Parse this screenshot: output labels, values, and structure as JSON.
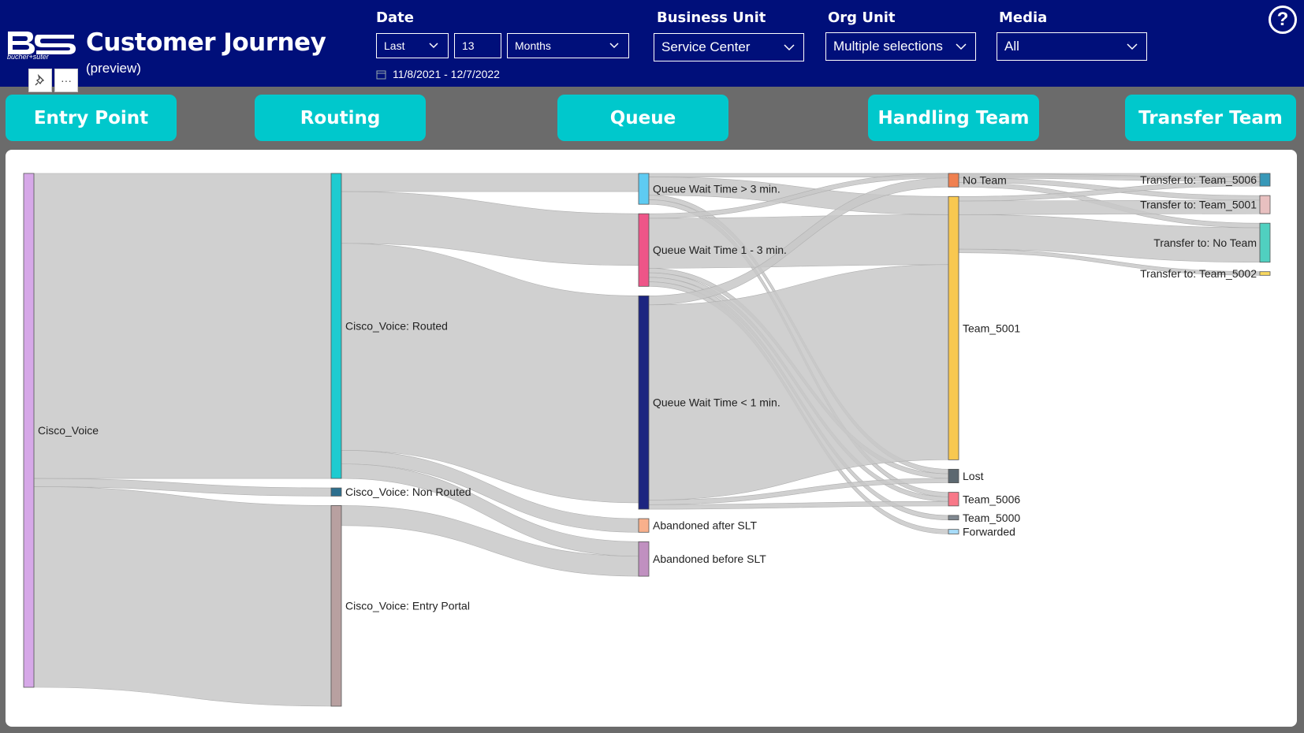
{
  "app": {
    "title": "Customer Journey",
    "subtitle": "(preview)",
    "logo_text": "bucher+suter",
    "pin_icon": "pin-icon",
    "more_label": "···",
    "help_label": "?"
  },
  "filters": {
    "date": {
      "label": "Date",
      "mode": "Last",
      "count": "13",
      "unit": "Months",
      "range": "11/8/2021 - 12/7/2022"
    },
    "business_unit": {
      "label": "Business Unit",
      "value": "Service Center"
    },
    "org_unit": {
      "label": "Org Unit",
      "value": "Multiple selections"
    },
    "media": {
      "label": "Media",
      "value": "All"
    }
  },
  "stages": [
    "Entry Point",
    "Routing",
    "Queue",
    "Handling Team",
    "Transfer Team"
  ],
  "colors": {
    "header": "#000f7a",
    "stage": "#00c8cc",
    "link": "#c8c8c8"
  },
  "chart_data": {
    "type": "sankey",
    "title": "Customer Journey",
    "columns": [
      "Entry Point",
      "Routing",
      "Queue",
      "Handling Team",
      "Transfer Team"
    ],
    "nodes": [
      {
        "id": "cv",
        "label": "Cisco_Voice",
        "column": 0,
        "color": "#d6a8e8"
      },
      {
        "id": "routed",
        "label": "Cisco_Voice: Routed",
        "column": 1,
        "color": "#1ecbd0"
      },
      {
        "id": "nonrouted",
        "label": "Cisco_Voice: Non Routed",
        "column": 1,
        "color": "#2d6f8e"
      },
      {
        "id": "portal",
        "label": "Cisco_Voice: Entry Portal",
        "column": 1,
        "color": "#b8a0a0"
      },
      {
        "id": "q3",
        "label": "Queue Wait Time > 3 min.",
        "column": 2,
        "color": "#5ecbf2"
      },
      {
        "id": "q13",
        "label": "Queue Wait Time 1 - 3 min.",
        "column": 2,
        "color": "#ee5588"
      },
      {
        "id": "q1",
        "label": "Queue Wait Time < 1 min.",
        "column": 2,
        "color": "#1c2580"
      },
      {
        "id": "abA",
        "label": "Abandoned after SLT",
        "column": 2,
        "color": "#f8b08c"
      },
      {
        "id": "abB",
        "label": "Abandoned before SLT",
        "column": 2,
        "color": "#c090c0"
      },
      {
        "id": "noteam",
        "label": "No Team",
        "column": 3,
        "color": "#f08050"
      },
      {
        "id": "t5001",
        "label": "Team_5001",
        "column": 3,
        "color": "#f8c850"
      },
      {
        "id": "lost",
        "label": "Lost",
        "column": 3,
        "color": "#5c6870"
      },
      {
        "id": "t5006",
        "label": "Team_5006",
        "column": 3,
        "color": "#f87888"
      },
      {
        "id": "t5000",
        "label": "Team_5000",
        "column": 3,
        "color": "#808890"
      },
      {
        "id": "fwd",
        "label": "Forwarded",
        "column": 3,
        "color": "#a8dcf8"
      },
      {
        "id": "tr5006",
        "label": "Transfer to: Team_5006",
        "column": 4,
        "color": "#3898b8"
      },
      {
        "id": "tr5001",
        "label": "Transfer to: Team_5001",
        "column": 4,
        "color": "#e8c0c0"
      },
      {
        "id": "trno",
        "label": "Transfer to: No Team",
        "column": 4,
        "color": "#50d0c0"
      },
      {
        "id": "tr5002",
        "label": "Transfer to: Team_5002",
        "column": 4,
        "color": "#f8d860"
      }
    ],
    "links": [
      {
        "source": "cv",
        "target": "routed",
        "value": 336
      },
      {
        "source": "cv",
        "target": "nonrouted",
        "value": 9
      },
      {
        "source": "cv",
        "target": "portal",
        "value": 221
      },
      {
        "source": "routed",
        "target": "q3",
        "value": 20
      },
      {
        "source": "routed",
        "target": "q13",
        "value": 57
      },
      {
        "source": "routed",
        "target": "q1",
        "value": 228
      },
      {
        "source": "routed",
        "target": "abA",
        "value": 15
      },
      {
        "source": "routed",
        "target": "abB",
        "value": 16
      },
      {
        "source": "portal",
        "target": "abB",
        "value": 22
      },
      {
        "source": "q3",
        "target": "tr5006",
        "value": 4
      },
      {
        "source": "q3",
        "target": "t5001",
        "value": 20
      },
      {
        "source": "q3",
        "target": "lost",
        "value": 5
      },
      {
        "source": "q3",
        "target": "t5006",
        "value": 5
      },
      {
        "source": "q13",
        "target": "noteam",
        "value": 5
      },
      {
        "source": "q13",
        "target": "t5001",
        "value": 55
      },
      {
        "source": "q13",
        "target": "lost",
        "value": 5
      },
      {
        "source": "q13",
        "target": "t5006",
        "value": 5
      },
      {
        "source": "q13",
        "target": "t5000",
        "value": 5
      },
      {
        "source": "q13",
        "target": "fwd",
        "value": 5
      },
      {
        "source": "q1",
        "target": "noteam",
        "value": 10
      },
      {
        "source": "q1",
        "target": "t5001",
        "value": 215
      },
      {
        "source": "q1",
        "target": "lost",
        "value": 5
      },
      {
        "source": "q1",
        "target": "t5006",
        "value": 5
      },
      {
        "source": "noteam",
        "target": "tr5006",
        "value": 5
      },
      {
        "source": "noteam",
        "target": "tr5001",
        "value": 5
      },
      {
        "source": "noteam",
        "target": "trno",
        "value": 5
      },
      {
        "source": "t5001",
        "target": "tr5006",
        "value": 5
      },
      {
        "source": "t5001",
        "target": "tr5001",
        "value": 15
      },
      {
        "source": "t5001",
        "target": "trno",
        "value": 38
      },
      {
        "source": "t5001",
        "target": "tr5002",
        "value": 4
      }
    ]
  }
}
